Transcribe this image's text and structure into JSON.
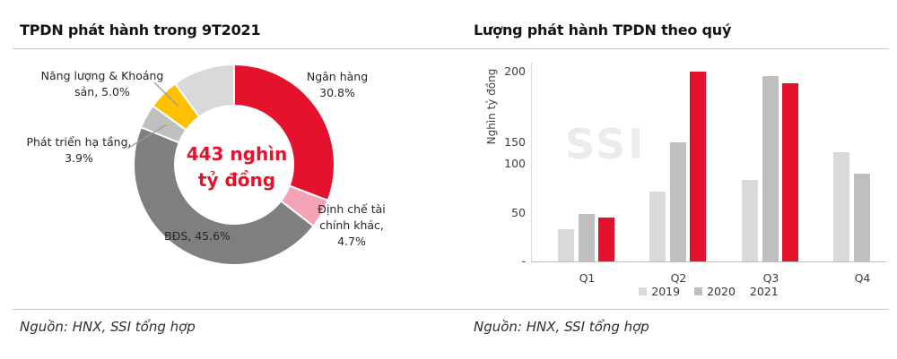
{
  "chart_data": [
    {
      "type": "donut",
      "title": "TPDN phát hành trong 9T2021",
      "center_label": [
        "443 nghìn",
        "tỷ đồng"
      ],
      "center_color": "#e4122d",
      "total_label": "443 nghìn tỷ đồng",
      "segments": [
        {
          "label": "Ngân hàng",
          "value": 30.8,
          "color": "#e4122d"
        },
        {
          "label": "Định chế tài chính khác",
          "value": 4.7,
          "color": "#f3a3b5"
        },
        {
          "label": "BĐS",
          "value": 45.6,
          "color": "#7f7f7f"
        },
        {
          "label": "Phát triển hạ tầng",
          "value": 3.9,
          "color": "#bfbfbf"
        },
        {
          "label": "Năng lượng & Khoáng sản",
          "value": 5.0,
          "color": "#ffc000"
        },
        {
          "label": "",
          "value": 10.0,
          "color": "#d9d9d9"
        }
      ],
      "callouts": [
        {
          "lines": [
            "Ngân hàng",
            "30.8%"
          ]
        },
        {
          "lines": [
            "Định chế tài",
            "chính khác,",
            "4.7%"
          ]
        },
        {
          "lines": [
            "BĐS, 45.6%"
          ]
        },
        {
          "lines": [
            "Phát triển hạ tầng,",
            "3.9%"
          ]
        },
        {
          "lines": [
            "Năng lượng & Khoáng",
            "sản, 5.0%"
          ]
        }
      ],
      "source": "Nguồn: HNX, SSI tổng hợp"
    },
    {
      "type": "bar",
      "title": "Lượng phát hành TPDN theo quý",
      "ylabel": "Nghìn tỷ đồng",
      "ylim": [
        0,
        200
      ],
      "yticks": [
        {
          "label": "200",
          "value": 200
        },
        {
          "label": "150",
          "value": 150
        },
        {
          "label": "100",
          "value": 100
        },
        {
          "label": "50",
          "value": 50
        },
        {
          "label": "-",
          "value": 0
        }
      ],
      "categories": [
        "Q1",
        "Q2",
        "Q3",
        "Q4"
      ],
      "series": [
        {
          "name": "2019",
          "color": "#d9d9d9",
          "values": [
            33,
            72,
            84,
            127
          ]
        },
        {
          "name": "2020",
          "color": "#bfbfbf",
          "values": [
            49,
            150,
            197,
            90
          ]
        },
        {
          "name": "2021",
          "color": "#e4122d",
          "values": [
            45,
            200,
            192,
            null
          ]
        }
      ],
      "legend": [
        {
          "label": "2019",
          "swatch": "#d9d9d9"
        },
        {
          "label": "2020",
          "swatch": "#bfbfbf"
        },
        {
          "label": "2021",
          "swatch": null
        }
      ],
      "legend_position": "bottom",
      "grid": false,
      "watermark": "SSI",
      "source": "Nguồn: HNX, SSI tổng hợp"
    }
  ],
  "colors": {
    "accent_red": "#e4122d",
    "gray_dark": "#7f7f7f",
    "gray_mid": "#bfbfbf",
    "gray_light": "#d9d9d9",
    "gold": "#ffc000",
    "pink": "#f3a3b5"
  }
}
